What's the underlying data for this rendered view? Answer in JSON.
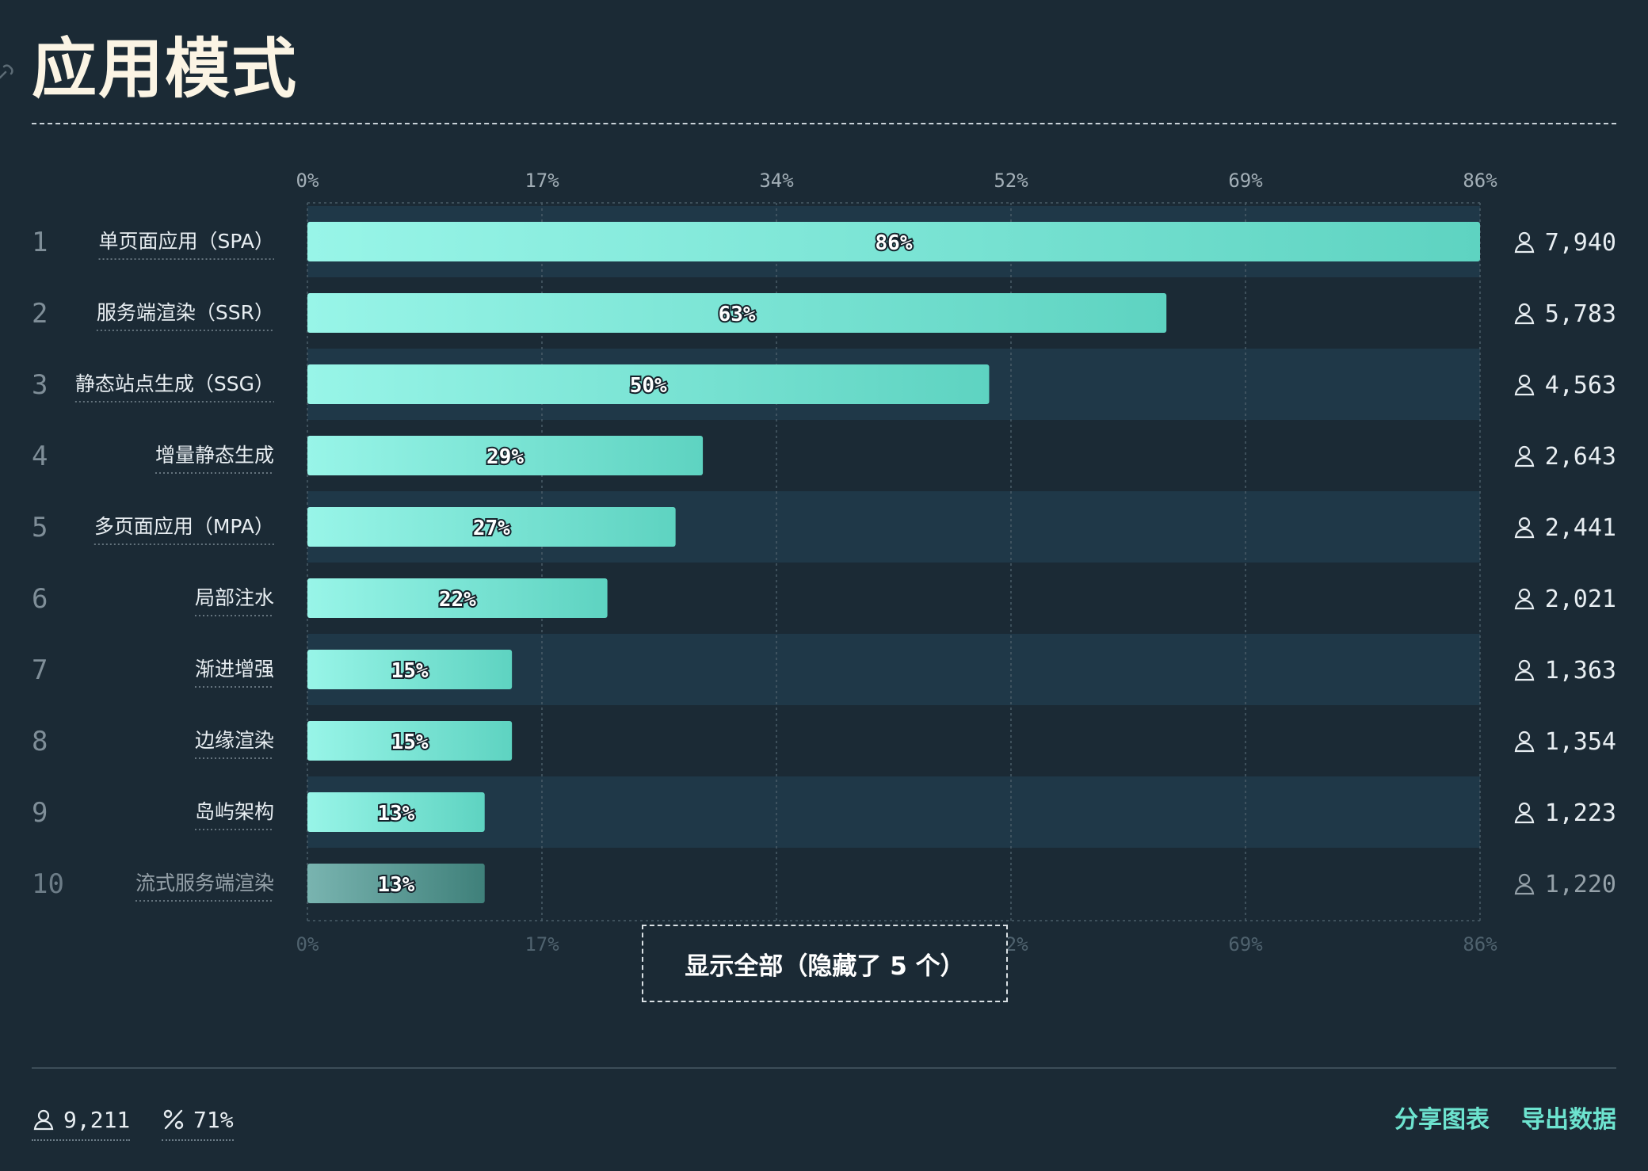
{
  "header": {
    "title": "应用模式"
  },
  "colors": {
    "background": "#1b2a35",
    "row_alt": "#1f3848",
    "bar_start": "#98f5e8",
    "bar_end": "#5ed3c1",
    "bar_dim_start": "#79b4b0",
    "bar_dim_end": "#3f807a",
    "accent": "#6de3cf"
  },
  "chart_data": {
    "type": "bar",
    "orientation": "horizontal",
    "x_ticks": [
      "0%",
      "17%",
      "34%",
      "52%",
      "69%",
      "86%"
    ],
    "xlim": [
      0,
      86
    ],
    "grid": true,
    "rows": [
      {
        "rank": "1",
        "label": "单页面应用（SPA）",
        "percent": 86,
        "percent_label": "86%",
        "count": "7,940"
      },
      {
        "rank": "2",
        "label": "服务端渲染（SSR）",
        "percent": 63,
        "percent_label": "63%",
        "count": "5,783"
      },
      {
        "rank": "3",
        "label": "静态站点生成（SSG）",
        "percent": 50,
        "percent_label": "50%",
        "count": "4,563"
      },
      {
        "rank": "4",
        "label": "增量静态生成",
        "percent": 29,
        "percent_label": "29%",
        "count": "2,643"
      },
      {
        "rank": "5",
        "label": "多页面应用（MPA）",
        "percent": 27,
        "percent_label": "27%",
        "count": "2,441"
      },
      {
        "rank": "6",
        "label": "局部注水",
        "percent": 22,
        "percent_label": "22%",
        "count": "2,021"
      },
      {
        "rank": "7",
        "label": "渐进增强",
        "percent": 15,
        "percent_label": "15%",
        "count": "1,363"
      },
      {
        "rank": "8",
        "label": "边缘渲染",
        "percent": 15,
        "percent_label": "15%",
        "count": "1,354"
      },
      {
        "rank": "9",
        "label": "岛屿架构",
        "percent": 13,
        "percent_label": "13%",
        "count": "1,223"
      },
      {
        "rank": "10",
        "label": "流式服务端渲染",
        "percent": 13,
        "percent_label": "13%",
        "count": "1,220",
        "faded": true
      }
    ]
  },
  "show_all": {
    "label": "显示全部（隐藏了 5 个）"
  },
  "footer": {
    "total_users": "9,211",
    "percent": "71%",
    "share_label": "分享图表",
    "export_label": "导出数据"
  }
}
